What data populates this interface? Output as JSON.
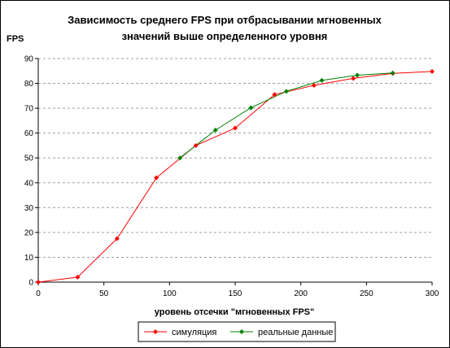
{
  "chart_data": {
    "type": "line",
    "title_lines": [
      "Зависимость среднего FPS при отбрасывании мгновенных",
      "значений выше определенного уровня"
    ],
    "xlabel": "уровень отсечки \"мгновенных FPS\"",
    "ylabel": "FPS",
    "xlim": [
      0,
      300
    ],
    "ylim": [
      0,
      90
    ],
    "x_ticks": [
      "0",
      "50",
      "100",
      "150",
      "200",
      "250",
      "300"
    ],
    "y_ticks": [
      "0",
      "10",
      "20",
      "30",
      "40",
      "50",
      "60",
      "70",
      "80",
      "90"
    ],
    "grid": "horizontal dashed",
    "legend_position": "bottom",
    "series": [
      {
        "name": "симуляция",
        "color": "#ff0000",
        "marker": "diamond",
        "points": [
          [
            0,
            0
          ],
          [
            30,
            2
          ],
          [
            60,
            17.5
          ],
          [
            90,
            42
          ],
          [
            120,
            55
          ],
          [
            150,
            62
          ],
          [
            180,
            75.5
          ],
          [
            210,
            79.2
          ],
          [
            240,
            82
          ],
          [
            270,
            84
          ],
          [
            300,
            84.8
          ]
        ]
      },
      {
        "name": "реальные данные",
        "color": "#008000",
        "marker": "diamond",
        "points": [
          [
            108,
            50
          ],
          [
            135,
            61.2
          ],
          [
            162,
            70.2
          ],
          [
            189,
            76.8
          ],
          [
            216,
            81.2
          ],
          [
            243,
            83.3
          ],
          [
            270,
            84.2
          ]
        ]
      }
    ]
  }
}
